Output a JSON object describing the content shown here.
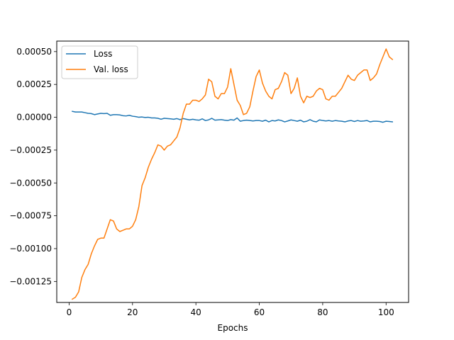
{
  "chart_data": {
    "type": "line",
    "title": "",
    "xlabel": "Epochs",
    "ylabel": "",
    "xlim": [
      -3.9,
      107.1
    ],
    "ylim": [
      -0.00141,
      0.00058
    ],
    "xticks": [
      0,
      20,
      40,
      60,
      80,
      100
    ],
    "xtick_labels": [
      "0",
      "20",
      "40",
      "60",
      "80",
      "100"
    ],
    "yticks": [
      -0.00125,
      -0.001,
      -0.00075,
      -0.0005,
      -0.00025,
      0.0,
      0.00025,
      0.0005
    ],
    "ytick_labels": [
      "−0.00125",
      "−0.00100",
      "−0.00075",
      "−0.00050",
      "−0.00025",
      "0.00000",
      "0.00025",
      "0.00050"
    ],
    "grid": false,
    "legend_position": "upper-left",
    "series": [
      {
        "name": "Loss",
        "color": "#1f77b4",
        "x": [
          1,
          2,
          3,
          4,
          5,
          6,
          7,
          8,
          9,
          10,
          11,
          12,
          13,
          14,
          15,
          16,
          17,
          18,
          19,
          20,
          21,
          22,
          23,
          24,
          25,
          26,
          27,
          28,
          29,
          30,
          31,
          32,
          33,
          34,
          35,
          36,
          37,
          38,
          39,
          40,
          41,
          42,
          43,
          44,
          45,
          46,
          47,
          48,
          49,
          50,
          51,
          52,
          53,
          54,
          55,
          56,
          57,
          58,
          59,
          60,
          61,
          62,
          63,
          64,
          65,
          66,
          67,
          68,
          69,
          70,
          71,
          72,
          73,
          74,
          75,
          76,
          77,
          78,
          79,
          80,
          81,
          82,
          83,
          84,
          85,
          86,
          87,
          88,
          89,
          90,
          91,
          92,
          93,
          94,
          95,
          96,
          97,
          98,
          99,
          100,
          101,
          102
        ],
        "y": [
          4.5e-05,
          4e-05,
          4e-05,
          4e-05,
          3.5e-05,
          3e-05,
          2.8e-05,
          2e-05,
          2.5e-05,
          3e-05,
          2.8e-05,
          3e-05,
          1.5e-05,
          2e-05,
          2e-05,
          1.8e-05,
          1.2e-05,
          1e-05,
          1.5e-05,
          8e-06,
          5e-06,
          0.0,
          2e-06,
          -2e-06,
          0.0,
          -5e-06,
          -5e-06,
          -8e-06,
          -1.5e-05,
          -8e-06,
          -1e-05,
          -1.2e-05,
          -1.5e-05,
          -1e-05,
          -1.8e-05,
          -1e-05,
          -1.5e-05,
          -2e-05,
          -1.5e-05,
          -2e-05,
          -2.2e-05,
          -1.2e-05,
          -2.5e-05,
          -2e-05,
          -8e-06,
          -2.2e-05,
          -2e-05,
          -1.8e-05,
          -2.2e-05,
          -2.5e-05,
          -1.8e-05,
          -2.2e-05,
          -5e-06,
          -3e-05,
          -2.5e-05,
          -2.2e-05,
          -2.5e-05,
          -2.8e-05,
          -2.5e-05,
          -2.5e-05,
          -3e-05,
          -2.2e-05,
          -3.5e-05,
          -2.5e-05,
          -2.8e-05,
          -2e-05,
          -2.5e-05,
          -3.5e-05,
          -2.8e-05,
          -2e-05,
          -2.5e-05,
          -3e-05,
          -2.2e-05,
          -3.5e-05,
          -3e-05,
          -1.8e-05,
          -3e-05,
          -3.5e-05,
          -2e-05,
          -2.5e-05,
          -2.8e-05,
          -2.5e-05,
          -3e-05,
          -2.5e-05,
          -2.8e-05,
          -3e-05,
          -3.5e-05,
          -2.8e-05,
          -2.5e-05,
          -3.2e-05,
          -2.5e-05,
          -3e-05,
          -2.8e-05,
          -2.5e-05,
          -3.5e-05,
          -3e-05,
          -3e-05,
          -3.2e-05,
          -3.8e-05,
          -3e-05,
          -3.2e-05,
          -3.5e-05
        ]
      },
      {
        "name": "Val. loss",
        "color": "#ff7f0e",
        "x": [
          1,
          2,
          3,
          4,
          5,
          6,
          7,
          8,
          9,
          10,
          11,
          12,
          13,
          14,
          15,
          16,
          17,
          18,
          19,
          20,
          21,
          22,
          23,
          24,
          25,
          26,
          27,
          28,
          29,
          30,
          31,
          32,
          33,
          34,
          35,
          36,
          37,
          38,
          39,
          40,
          41,
          42,
          43,
          44,
          45,
          46,
          47,
          48,
          49,
          50,
          51,
          52,
          53,
          54,
          55,
          56,
          57,
          58,
          59,
          60,
          61,
          62,
          63,
          64,
          65,
          66,
          67,
          68,
          69,
          70,
          71,
          72,
          73,
          74,
          75,
          76,
          77,
          78,
          79,
          80,
          81,
          82,
          83,
          84,
          85,
          86,
          87,
          88,
          89,
          90,
          91,
          92,
          93,
          94,
          95,
          96,
          97,
          98,
          99,
          100,
          101,
          102
        ],
        "y": [
          -0.001385,
          -0.00137,
          -0.00133,
          -0.00122,
          -0.00116,
          -0.00112,
          -0.00104,
          -0.00098,
          -0.00093,
          -0.00092,
          -0.00092,
          -0.00085,
          -0.00078,
          -0.00079,
          -0.00085,
          -0.00087,
          -0.00086,
          -0.00085,
          -0.00085,
          -0.00083,
          -0.00078,
          -0.00068,
          -0.00052,
          -0.00046,
          -0.00038,
          -0.00032,
          -0.00027,
          -0.00021,
          -0.00022,
          -0.00025,
          -0.00022,
          -0.00021,
          -0.00018,
          -0.00015,
          -8e-05,
          3e-05,
          0.0001,
          0.0001,
          0.00013,
          0.00013,
          0.00012,
          0.00014,
          0.00017,
          0.00029,
          0.00027,
          0.00016,
          0.00014,
          0.00018,
          0.00018,
          0.00023,
          0.00037,
          0.00025,
          0.00013,
          9e-05,
          2e-05,
          3e-05,
          8e-05,
          0.0002,
          0.00031,
          0.00036,
          0.00026,
          0.0002,
          0.00016,
          0.00014,
          0.00021,
          0.00022,
          0.00027,
          0.00034,
          0.00032,
          0.00018,
          0.00022,
          0.0003,
          0.00016,
          0.00011,
          0.00016,
          0.00015,
          0.00016,
          0.0002,
          0.00022,
          0.00021,
          0.00014,
          0.00013,
          0.00016,
          0.00016,
          0.00019,
          0.00022,
          0.00027,
          0.00032,
          0.00029,
          0.00028,
          0.00032,
          0.00034,
          0.00036,
          0.00036,
          0.00028,
          0.0003,
          0.00033,
          0.0004,
          0.00046,
          0.00052,
          0.00046,
          0.00044
        ]
      }
    ]
  }
}
